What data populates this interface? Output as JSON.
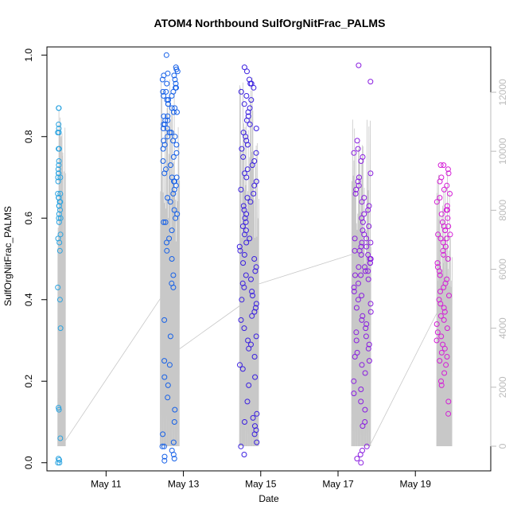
{
  "chart_data": {
    "type": "scatter",
    "title": "ATOM4 Northbound SulfOrgNitFrac_PALMS",
    "xlabel": "Date",
    "ylabel": "SulfOrgNitFrac_PALMS",
    "x_ticks": [
      "May 11",
      "May 13",
      "May 15",
      "May 17",
      "May 19"
    ],
    "x_tick_days": [
      11,
      13,
      15,
      17,
      19
    ],
    "xlim_days": [
      9.47,
      20.95
    ],
    "y_ticks": [
      "0.0",
      "0.2",
      "0.4",
      "0.6",
      "0.8",
      "1.0"
    ],
    "y_tick_values": [
      0,
      0.2,
      0.4,
      0.6,
      0.8,
      1.0
    ],
    "ylim": [
      -0.02,
      1.02
    ],
    "right_axis_ticks": [
      "0",
      "2000",
      "4000",
      "6000",
      "8000",
      "10000",
      "12000"
    ],
    "right_axis_values": [
      0,
      2000,
      4000,
      6000,
      8000,
      10000,
      12000
    ],
    "right_axis_color": "#bbbbbb",
    "grid": false,
    "clusters": [
      {
        "day_range": [
          9.75,
          9.83
        ],
        "color": "#2aa3e0",
        "values": [
          0.87,
          0.87,
          0.83,
          0.82,
          0.81,
          0.81,
          0.77,
          0.77,
          0.74,
          0.73,
          0.72,
          0.71,
          0.71,
          0.7,
          0.7,
          0.69,
          0.66,
          0.66,
          0.65,
          0.65,
          0.64,
          0.64,
          0.63,
          0.63,
          0.62,
          0.61,
          0.6,
          0.6,
          0.59,
          0.56,
          0.55,
          0.54,
          0.52,
          0.43,
          0.4,
          0.33,
          0.135,
          0.13,
          0.06,
          0.01,
          0.007,
          0.0,
          0.0
        ]
      },
      {
        "day_range": [
          12.45,
          12.85
        ],
        "color": "#1560e8",
        "values": [
          1.0,
          0.97,
          0.965,
          0.96,
          0.955,
          0.95,
          0.95,
          0.94,
          0.94,
          0.93,
          0.93,
          0.92,
          0.92,
          0.91,
          0.91,
          0.91,
          0.9,
          0.9,
          0.89,
          0.89,
          0.88,
          0.88,
          0.87,
          0.87,
          0.86,
          0.86,
          0.85,
          0.85,
          0.84,
          0.84,
          0.83,
          0.83,
          0.82,
          0.82,
          0.81,
          0.81,
          0.8,
          0.8,
          0.79,
          0.79,
          0.78,
          0.78,
          0.77,
          0.76,
          0.75,
          0.74,
          0.73,
          0.72,
          0.71,
          0.7,
          0.7,
          0.69,
          0.69,
          0.68,
          0.67,
          0.66,
          0.65,
          0.64,
          0.62,
          0.61,
          0.6,
          0.59,
          0.59,
          0.57,
          0.55,
          0.54,
          0.52,
          0.5,
          0.46,
          0.44,
          0.43,
          0.35,
          0.31,
          0.25,
          0.24,
          0.21,
          0.19,
          0.16,
          0.13,
          0.1,
          0.07,
          0.05,
          0.04,
          0.04,
          0.03,
          0.02,
          0.015,
          0.01,
          0.005
        ]
      },
      {
        "day_range": [
          14.45,
          14.9
        ],
        "color": "#3a1fe0",
        "values": [
          0.97,
          0.96,
          0.94,
          0.93,
          0.93,
          0.92,
          0.91,
          0.9,
          0.89,
          0.88,
          0.87,
          0.86,
          0.85,
          0.84,
          0.83,
          0.82,
          0.81,
          0.8,
          0.79,
          0.78,
          0.77,
          0.76,
          0.75,
          0.74,
          0.73,
          0.72,
          0.71,
          0.7,
          0.69,
          0.68,
          0.67,
          0.66,
          0.65,
          0.64,
          0.63,
          0.62,
          0.61,
          0.6,
          0.59,
          0.58,
          0.57,
          0.56,
          0.55,
          0.54,
          0.53,
          0.52,
          0.51,
          0.5,
          0.49,
          0.48,
          0.47,
          0.46,
          0.45,
          0.44,
          0.43,
          0.42,
          0.41,
          0.4,
          0.39,
          0.38,
          0.37,
          0.36,
          0.35,
          0.33,
          0.31,
          0.3,
          0.29,
          0.28,
          0.26,
          0.24,
          0.23,
          0.21,
          0.19,
          0.15,
          0.12,
          0.11,
          0.1,
          0.09,
          0.08,
          0.07,
          0.05,
          0.04,
          0.02
        ]
      },
      {
        "day_range": [
          17.4,
          17.85
        ],
        "color": "#8a1ee0",
        "values": [
          0.975,
          0.935,
          0.79,
          0.77,
          0.76,
          0.75,
          0.74,
          0.71,
          0.7,
          0.69,
          0.68,
          0.67,
          0.66,
          0.65,
          0.64,
          0.63,
          0.62,
          0.61,
          0.6,
          0.59,
          0.58,
          0.57,
          0.56,
          0.55,
          0.55,
          0.54,
          0.54,
          0.53,
          0.53,
          0.52,
          0.52,
          0.51,
          0.51,
          0.5,
          0.5,
          0.49,
          0.49,
          0.48,
          0.48,
          0.47,
          0.47,
          0.46,
          0.46,
          0.45,
          0.44,
          0.43,
          0.42,
          0.41,
          0.4,
          0.39,
          0.38,
          0.37,
          0.36,
          0.35,
          0.34,
          0.33,
          0.32,
          0.31,
          0.3,
          0.29,
          0.28,
          0.27,
          0.26,
          0.25,
          0.24,
          0.22,
          0.2,
          0.18,
          0.17,
          0.15,
          0.13,
          0.1,
          0.09,
          0.04,
          0.03,
          0.02,
          0.01,
          0.0
        ]
      },
      {
        "day_range": [
          19.55,
          19.9
        ],
        "color": "#d41ed6",
        "values": [
          0.73,
          0.73,
          0.72,
          0.71,
          0.7,
          0.69,
          0.68,
          0.67,
          0.66,
          0.65,
          0.64,
          0.63,
          0.62,
          0.62,
          0.61,
          0.6,
          0.59,
          0.58,
          0.58,
          0.57,
          0.57,
          0.56,
          0.56,
          0.55,
          0.55,
          0.54,
          0.53,
          0.52,
          0.51,
          0.5,
          0.49,
          0.48,
          0.47,
          0.46,
          0.45,
          0.44,
          0.43,
          0.42,
          0.41,
          0.4,
          0.39,
          0.38,
          0.37,
          0.36,
          0.35,
          0.34,
          0.33,
          0.32,
          0.31,
          0.3,
          0.29,
          0.28,
          0.27,
          0.26,
          0.25,
          0.24,
          0.22,
          0.2,
          0.19,
          0.15,
          0.12
        ]
      }
    ],
    "altitude_line": {
      "color": "#c8c8c8",
      "clusters": [
        {
          "day_range": [
            9.75,
            9.95
          ],
          "max_value": 11400
        },
        {
          "day_range": [
            12.4,
            12.9
          ],
          "max_value": 12500
        },
        {
          "day_range": [
            14.45,
            14.95
          ],
          "max_value": 12600
        },
        {
          "day_range": [
            17.35,
            17.85
          ],
          "max_value": 11200
        },
        {
          "day_range": [
            19.55,
            19.95
          ],
          "max_value": 9500
        }
      ],
      "transits": [
        {
          "from_day": 9.9,
          "from_value": 100,
          "to_day": 12.4,
          "to_value": 5000
        },
        {
          "from_day": 12.9,
          "from_value": 3300,
          "to_day": 14.5,
          "to_value": 4800
        },
        {
          "from_day": 14.95,
          "from_value": 5500,
          "to_day": 17.35,
          "to_value": 6500
        },
        {
          "from_day": 17.85,
          "from_value": 100,
          "to_day": 19.55,
          "to_value": 4500
        }
      ]
    }
  }
}
